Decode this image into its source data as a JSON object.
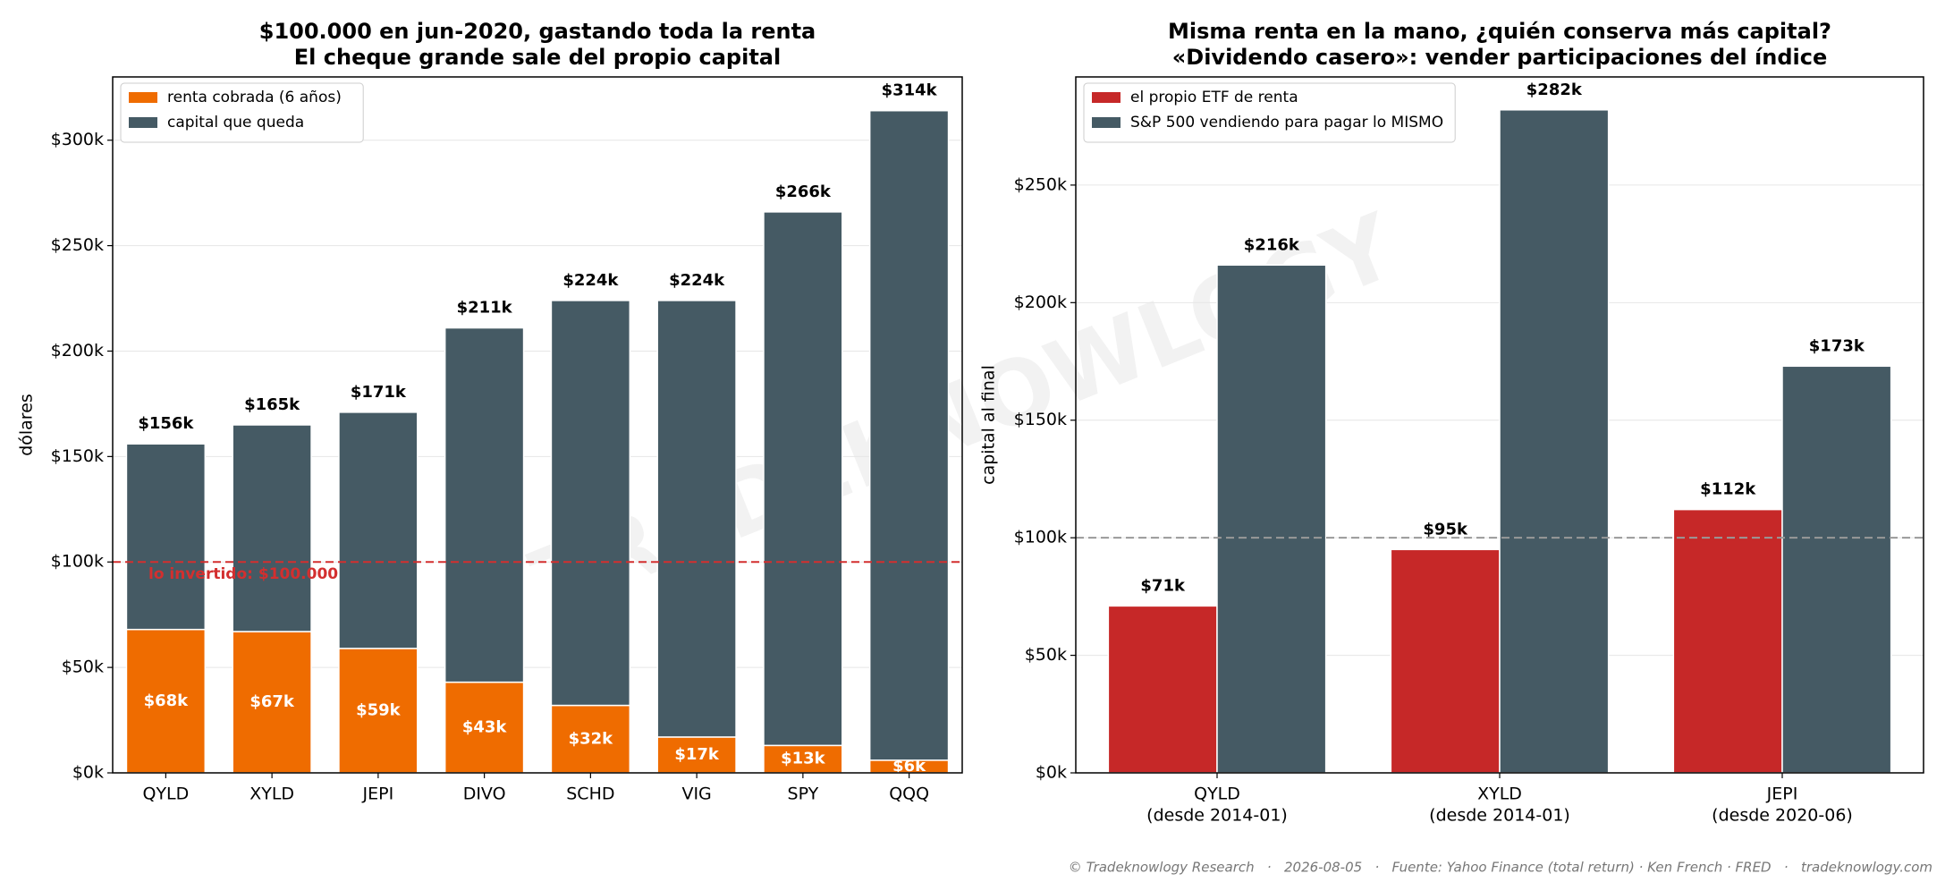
{
  "chart_data": [
    {
      "type": "bar",
      "stacked": true,
      "title": [
        "$100.000 en jun-2020, gastando toda la renta",
        "El cheque grande sale del propio capital"
      ],
      "ylabel": "dólares",
      "categories": [
        "QYLD",
        "XYLD",
        "JEPI",
        "DIVO",
        "SCHD",
        "VIG",
        "SPY",
        "QQQ"
      ],
      "series": [
        {
          "name": "renta cobrada (6 años)",
          "color": "#ef6c00",
          "values": [
            68000,
            67000,
            59000,
            43000,
            32000,
            17000,
            13000,
            6000
          ],
          "value_labels": [
            "$68k",
            "$67k",
            "$59k",
            "$43k",
            "$32k",
            "$17k",
            "$13k",
            "$6k"
          ]
        },
        {
          "name": "capital que queda",
          "color": "#455a64",
          "values": [
            88000,
            98000,
            112000,
            168000,
            192000,
            207000,
            253000,
            308000
          ]
        }
      ],
      "total_labels": [
        "$156k",
        "$165k",
        "$171k",
        "$211k",
        "$224k",
        "$224k",
        "$266k",
        "$314k"
      ],
      "ylim": [
        0,
        330000
      ],
      "yticks": [
        {
          "value": 0,
          "label": "$0k"
        },
        {
          "value": 50000,
          "label": "$50k"
        },
        {
          "value": 100000,
          "label": "$100k"
        },
        {
          "value": 150000,
          "label": "$150k"
        },
        {
          "value": 200000,
          "label": "$200k"
        },
        {
          "value": 250000,
          "label": "$250k"
        },
        {
          "value": 300000,
          "label": "$300k"
        }
      ],
      "grid": true,
      "legend": "upper left",
      "reference_line": {
        "value": 100000,
        "label": "lo invertido: $100.000",
        "color": "#d32f2f"
      }
    },
    {
      "type": "grouped_bar",
      "title": [
        "Misma renta en la mano, ¿quién conserva más capital?",
        "«Dividendo casero»: vender participaciones del índice"
      ],
      "ylabel": "capital al final",
      "categories": [
        [
          "QYLD",
          "(desde 2014-01)"
        ],
        [
          "XYLD",
          "(desde 2014-01)"
        ],
        [
          "JEPI",
          "(desde 2020-06)"
        ]
      ],
      "series": [
        {
          "name": "el propio ETF de renta",
          "color": "#c62828",
          "values": [
            71000,
            95000,
            112000
          ],
          "value_labels": [
            "$71k",
            "$95k",
            "$112k"
          ]
        },
        {
          "name": "S&P 500 vendiendo para pagar lo MISMO",
          "color": "#455a64",
          "values": [
            216000,
            282000,
            173000
          ],
          "value_labels": [
            "$216k",
            "$282k",
            "$173k"
          ]
        }
      ],
      "ylim": [
        0,
        296000
      ],
      "yticks": [
        {
          "value": 0,
          "label": "$0k"
        },
        {
          "value": 50000,
          "label": "$50k"
        },
        {
          "value": 100000,
          "label": "$100k"
        },
        {
          "value": 150000,
          "label": "$150k"
        },
        {
          "value": 200000,
          "label": "$200k"
        },
        {
          "value": 250000,
          "label": "$250k"
        }
      ],
      "grid": true,
      "legend": "upper left",
      "reference_line": {
        "value": 100000,
        "color": "#999999"
      }
    }
  ],
  "watermark": "TRADEKNOWLOGY",
  "footer": "© Tradeknowlogy Research   ·   2026-08-05   ·   Fuente: Yahoo Finance (total return) · Ken French · FRED   ·   tradeknowlogy.com"
}
